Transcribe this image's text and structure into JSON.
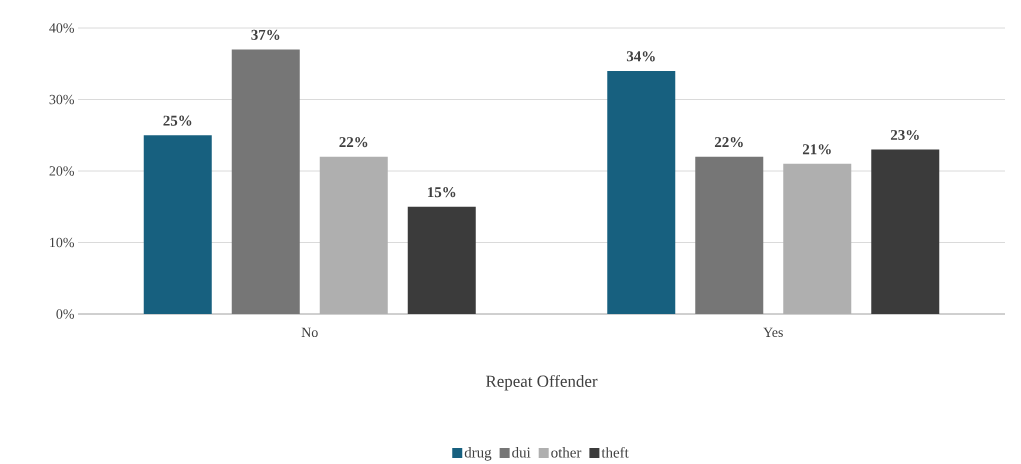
{
  "chart_data": {
    "type": "bar",
    "xlabel": "Repeat Offender",
    "categories": [
      "No",
      "Yes"
    ],
    "series": [
      {
        "name": "drug",
        "color": "#17607f",
        "values": [
          25,
          34
        ],
        "value_labels": [
          "25%",
          "34%"
        ]
      },
      {
        "name": "dui",
        "color": "#767676",
        "values": [
          37,
          22
        ],
        "value_labels": [
          "37%",
          "22%"
        ]
      },
      {
        "name": "other",
        "color": "#afafaf",
        "values": [
          22,
          21
        ],
        "value_labels": [
          "22%",
          "21%"
        ]
      },
      {
        "name": "theft",
        "color": "#3b3b3b",
        "values": [
          15,
          23
        ],
        "value_labels": [
          "15%",
          "23%"
        ]
      }
    ],
    "ylim": [
      0,
      40
    ],
    "yticks": [
      {
        "value": 0,
        "label": "0%"
      },
      {
        "value": 10,
        "label": "10%"
      },
      {
        "value": 20,
        "label": "20%"
      },
      {
        "value": 30,
        "label": "30%"
      },
      {
        "value": 40,
        "label": "40%"
      }
    ],
    "grid": "y",
    "legend": "bottom"
  }
}
